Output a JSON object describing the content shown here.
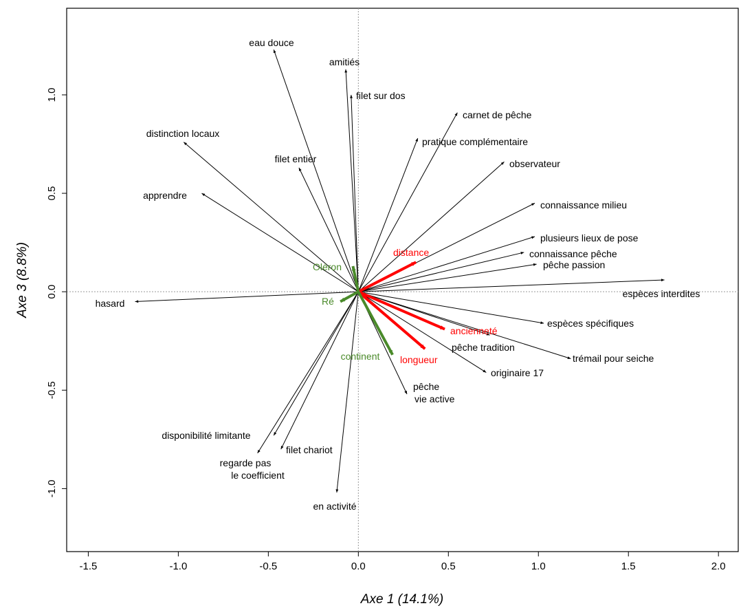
{
  "chart_data": {
    "type": "scatter",
    "title": "",
    "xlabel": "Axe 1 (14.1%)",
    "ylabel": "Axe 3 (8.8%)",
    "xlim": [
      -1.62,
      2.11
    ],
    "ylim": [
      -1.32,
      1.44
    ],
    "xticks": [
      -1.5,
      -1.0,
      -0.5,
      0.0,
      0.5,
      1.0,
      1.5,
      2.0
    ],
    "yticks": [
      -1.0,
      -0.5,
      0.0,
      0.5,
      1.0
    ],
    "reference_lines": {
      "x": 0,
      "y": 0,
      "style": "dotted"
    },
    "colors": {
      "black": "#000000",
      "red": "#ff0000",
      "green": "#4a8a2a"
    },
    "series": [
      {
        "color": "black",
        "vectors": [
          {
            "label": "eau douce",
            "x": -0.47,
            "y": 1.23
          },
          {
            "label": "amitiés",
            "x": -0.07,
            "y": 1.13
          },
          {
            "label": "filet sur dos",
            "x": -0.04,
            "y": 1.0
          },
          {
            "label": "carnet de pêche",
            "x": 0.55,
            "y": 0.91
          },
          {
            "label": "distinction locaux",
            "x": -0.97,
            "y": 0.76
          },
          {
            "label": "pratique complémentaire",
            "x": 0.33,
            "y": 0.78
          },
          {
            "label": "filet entier",
            "x": -0.33,
            "y": 0.63
          },
          {
            "label": "observateur",
            "x": 0.81,
            "y": 0.66
          },
          {
            "label": "apprendre",
            "x": -0.87,
            "y": 0.5
          },
          {
            "label": "connaissance milieu",
            "x": 0.98,
            "y": 0.45
          },
          {
            "label": "plusieurs lieux de pose",
            "x": 0.98,
            "y": 0.28
          },
          {
            "label": "connaissance pêche",
            "x": 0.92,
            "y": 0.2
          },
          {
            "label": "pêche passion",
            "x": 0.99,
            "y": 0.14
          },
          {
            "label": "espèces interdites",
            "x": 1.7,
            "y": 0.06
          },
          {
            "label": "hasard",
            "x": -1.24,
            "y": -0.05
          },
          {
            "label": "espèces spécifiques",
            "x": 1.03,
            "y": -0.16
          },
          {
            "label": "pêche tradition",
            "x": 0.73,
            "y": -0.22
          },
          {
            "label": "trémail pour seiche",
            "x": 1.18,
            "y": -0.34
          },
          {
            "label": "originaire 17",
            "x": 0.71,
            "y": -0.41
          },
          {
            "label": "pêche",
            "x": 0.27,
            "y": -0.52
          },
          {
            "label": "vie active",
            "x": null,
            "y": null
          },
          {
            "label": "disponibilité limitante",
            "x": -0.47,
            "y": -0.73
          },
          {
            "label": "filet chariot",
            "x": -0.43,
            "y": -0.8
          },
          {
            "label": "regarde pas",
            "x": -0.56,
            "y": -0.82
          },
          {
            "label": "le coefficient",
            "x": null,
            "y": null
          },
          {
            "label": "en activité",
            "x": -0.12,
            "y": -1.02
          }
        ]
      },
      {
        "color": "red",
        "vectors": [
          {
            "label": "distance",
            "x": 0.32,
            "y": 0.15
          },
          {
            "label": "ancienneté",
            "x": 0.48,
            "y": -0.19
          },
          {
            "label": "longueur",
            "x": 0.37,
            "y": -0.29
          }
        ]
      },
      {
        "color": "green",
        "vectors": [
          {
            "label": "Oléron",
            "x": -0.03,
            "y": 0.13
          },
          {
            "label": "Ré",
            "x": -0.1,
            "y": -0.05
          },
          {
            "label": "continent",
            "x": 0.19,
            "y": -0.32
          }
        ]
      }
    ]
  }
}
